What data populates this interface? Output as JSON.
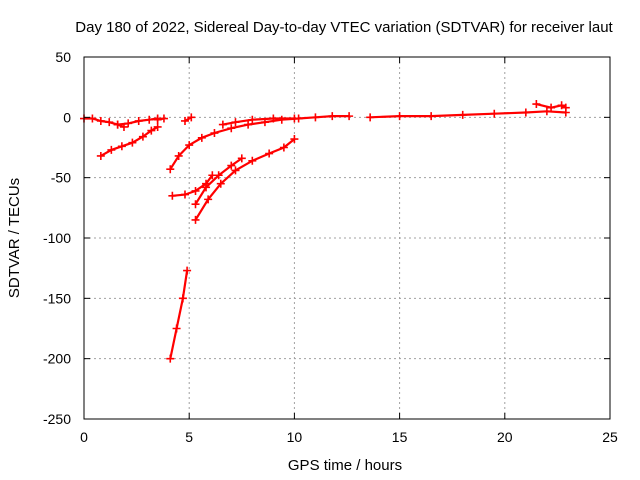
{
  "chart_data": {
    "type": "scatter",
    "title": "Day 180 of 2022, Sidereal Day-to-day VTEC variation (SDTVAR) for receiver laut",
    "xlabel": "GPS time / hours",
    "ylabel": "SDTVAR / TECUs",
    "xlim": [
      0,
      25
    ],
    "ylim": [
      -250,
      50
    ],
    "xticks": [
      "0",
      "5",
      "10",
      "15",
      "20",
      "25"
    ],
    "yticks": [
      "50",
      "0",
      "-50",
      "-100",
      "-150",
      "-200",
      "-250"
    ],
    "grid": true,
    "marker": "plus",
    "color": "#ff0000",
    "series": [
      {
        "x": [
          0.0,
          0.4,
          0.8,
          1.2,
          1.6,
          1.9
        ],
        "y": [
          -1,
          -1,
          -3,
          -4,
          -6,
          -8
        ]
      },
      {
        "x": [
          1.6,
          2.1,
          2.6,
          3.1,
          3.5
        ],
        "y": [
          -6,
          -5,
          -3,
          -2,
          -1
        ]
      },
      {
        "x": [
          0.8,
          1.3,
          1.8,
          2.3,
          2.8,
          3.2,
          3.5
        ],
        "y": [
          -32,
          -27,
          -24,
          -21,
          -16,
          -11,
          -8
        ]
      },
      {
        "x": [
          3.5,
          3.8
        ],
        "y": [
          -2,
          -1
        ]
      },
      {
        "x": [
          4.8,
          5.1
        ],
        "y": [
          -3,
          0
        ]
      },
      {
        "x": [
          4.1,
          4.5,
          5.0,
          5.6,
          6.2,
          7.0,
          7.8,
          8.6,
          9.4,
          10.2,
          11.0,
          11.8,
          12.6
        ],
        "y": [
          -43,
          -32,
          -23,
          -17,
          -13,
          -9,
          -6,
          -4,
          -2,
          -1,
          0,
          1,
          1
        ]
      },
      {
        "x": [
          6.6,
          7.2,
          8.0,
          9.0,
          10.0
        ],
        "y": [
          -6,
          -4,
          -2,
          -1,
          -1
        ]
      },
      {
        "x": [
          4.2,
          4.8,
          5.3,
          5.8,
          6.1
        ],
        "y": [
          -65,
          -64,
          -61,
          -55,
          -48
        ]
      },
      {
        "x": [
          5.3,
          5.8,
          6.4,
          7.0,
          7.5
        ],
        "y": [
          -72,
          -58,
          -48,
          -40,
          -34
        ]
      },
      {
        "x": [
          5.3,
          5.9,
          6.5,
          7.2,
          8.0,
          8.8,
          9.5,
          10.0
        ],
        "y": [
          -85,
          -68,
          -55,
          -44,
          -36,
          -30,
          -25,
          -18
        ]
      },
      {
        "x": [
          4.1,
          4.4,
          4.7,
          4.9
        ],
        "y": [
          -200,
          -175,
          -150,
          -127
        ]
      },
      {
        "x": [
          13.6,
          15.0,
          16.5,
          18.0,
          19.5,
          21.0,
          22.0,
          22.9
        ],
        "y": [
          0,
          1,
          1,
          2,
          3,
          4,
          5,
          4
        ]
      },
      {
        "x": [
          21.5,
          22.2,
          22.7,
          22.9
        ],
        "y": [
          11,
          8,
          10,
          8
        ]
      }
    ]
  }
}
